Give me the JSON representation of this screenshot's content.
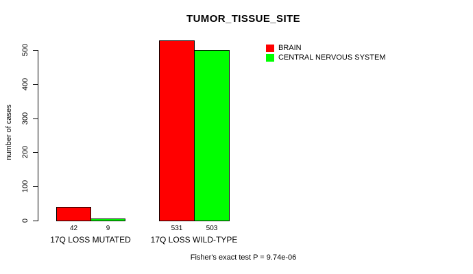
{
  "page": {
    "background": "#ffffff"
  },
  "chart_data": {
    "type": "bar",
    "title": "TUMOR_TISSUE_SITE",
    "xlabel": "",
    "ylabel": "number of cases",
    "categories": [
      "17Q LOSS MUTATED",
      "17Q LOSS WILD-TYPE"
    ],
    "series": [
      {
        "name": "BRAIN",
        "color": "#ff0000",
        "values": [
          42,
          531
        ]
      },
      {
        "name": "CENTRAL NERVOUS SYSTEM",
        "color": "#00ff00",
        "values": [
          9,
          503
        ]
      }
    ],
    "yticks": [
      0,
      100,
      200,
      300,
      400,
      500
    ],
    "ylim": [
      0,
      500
    ],
    "grid": false,
    "legend_position": "topright",
    "annotation": "Fisher's exact test P = 9.74e-06"
  }
}
